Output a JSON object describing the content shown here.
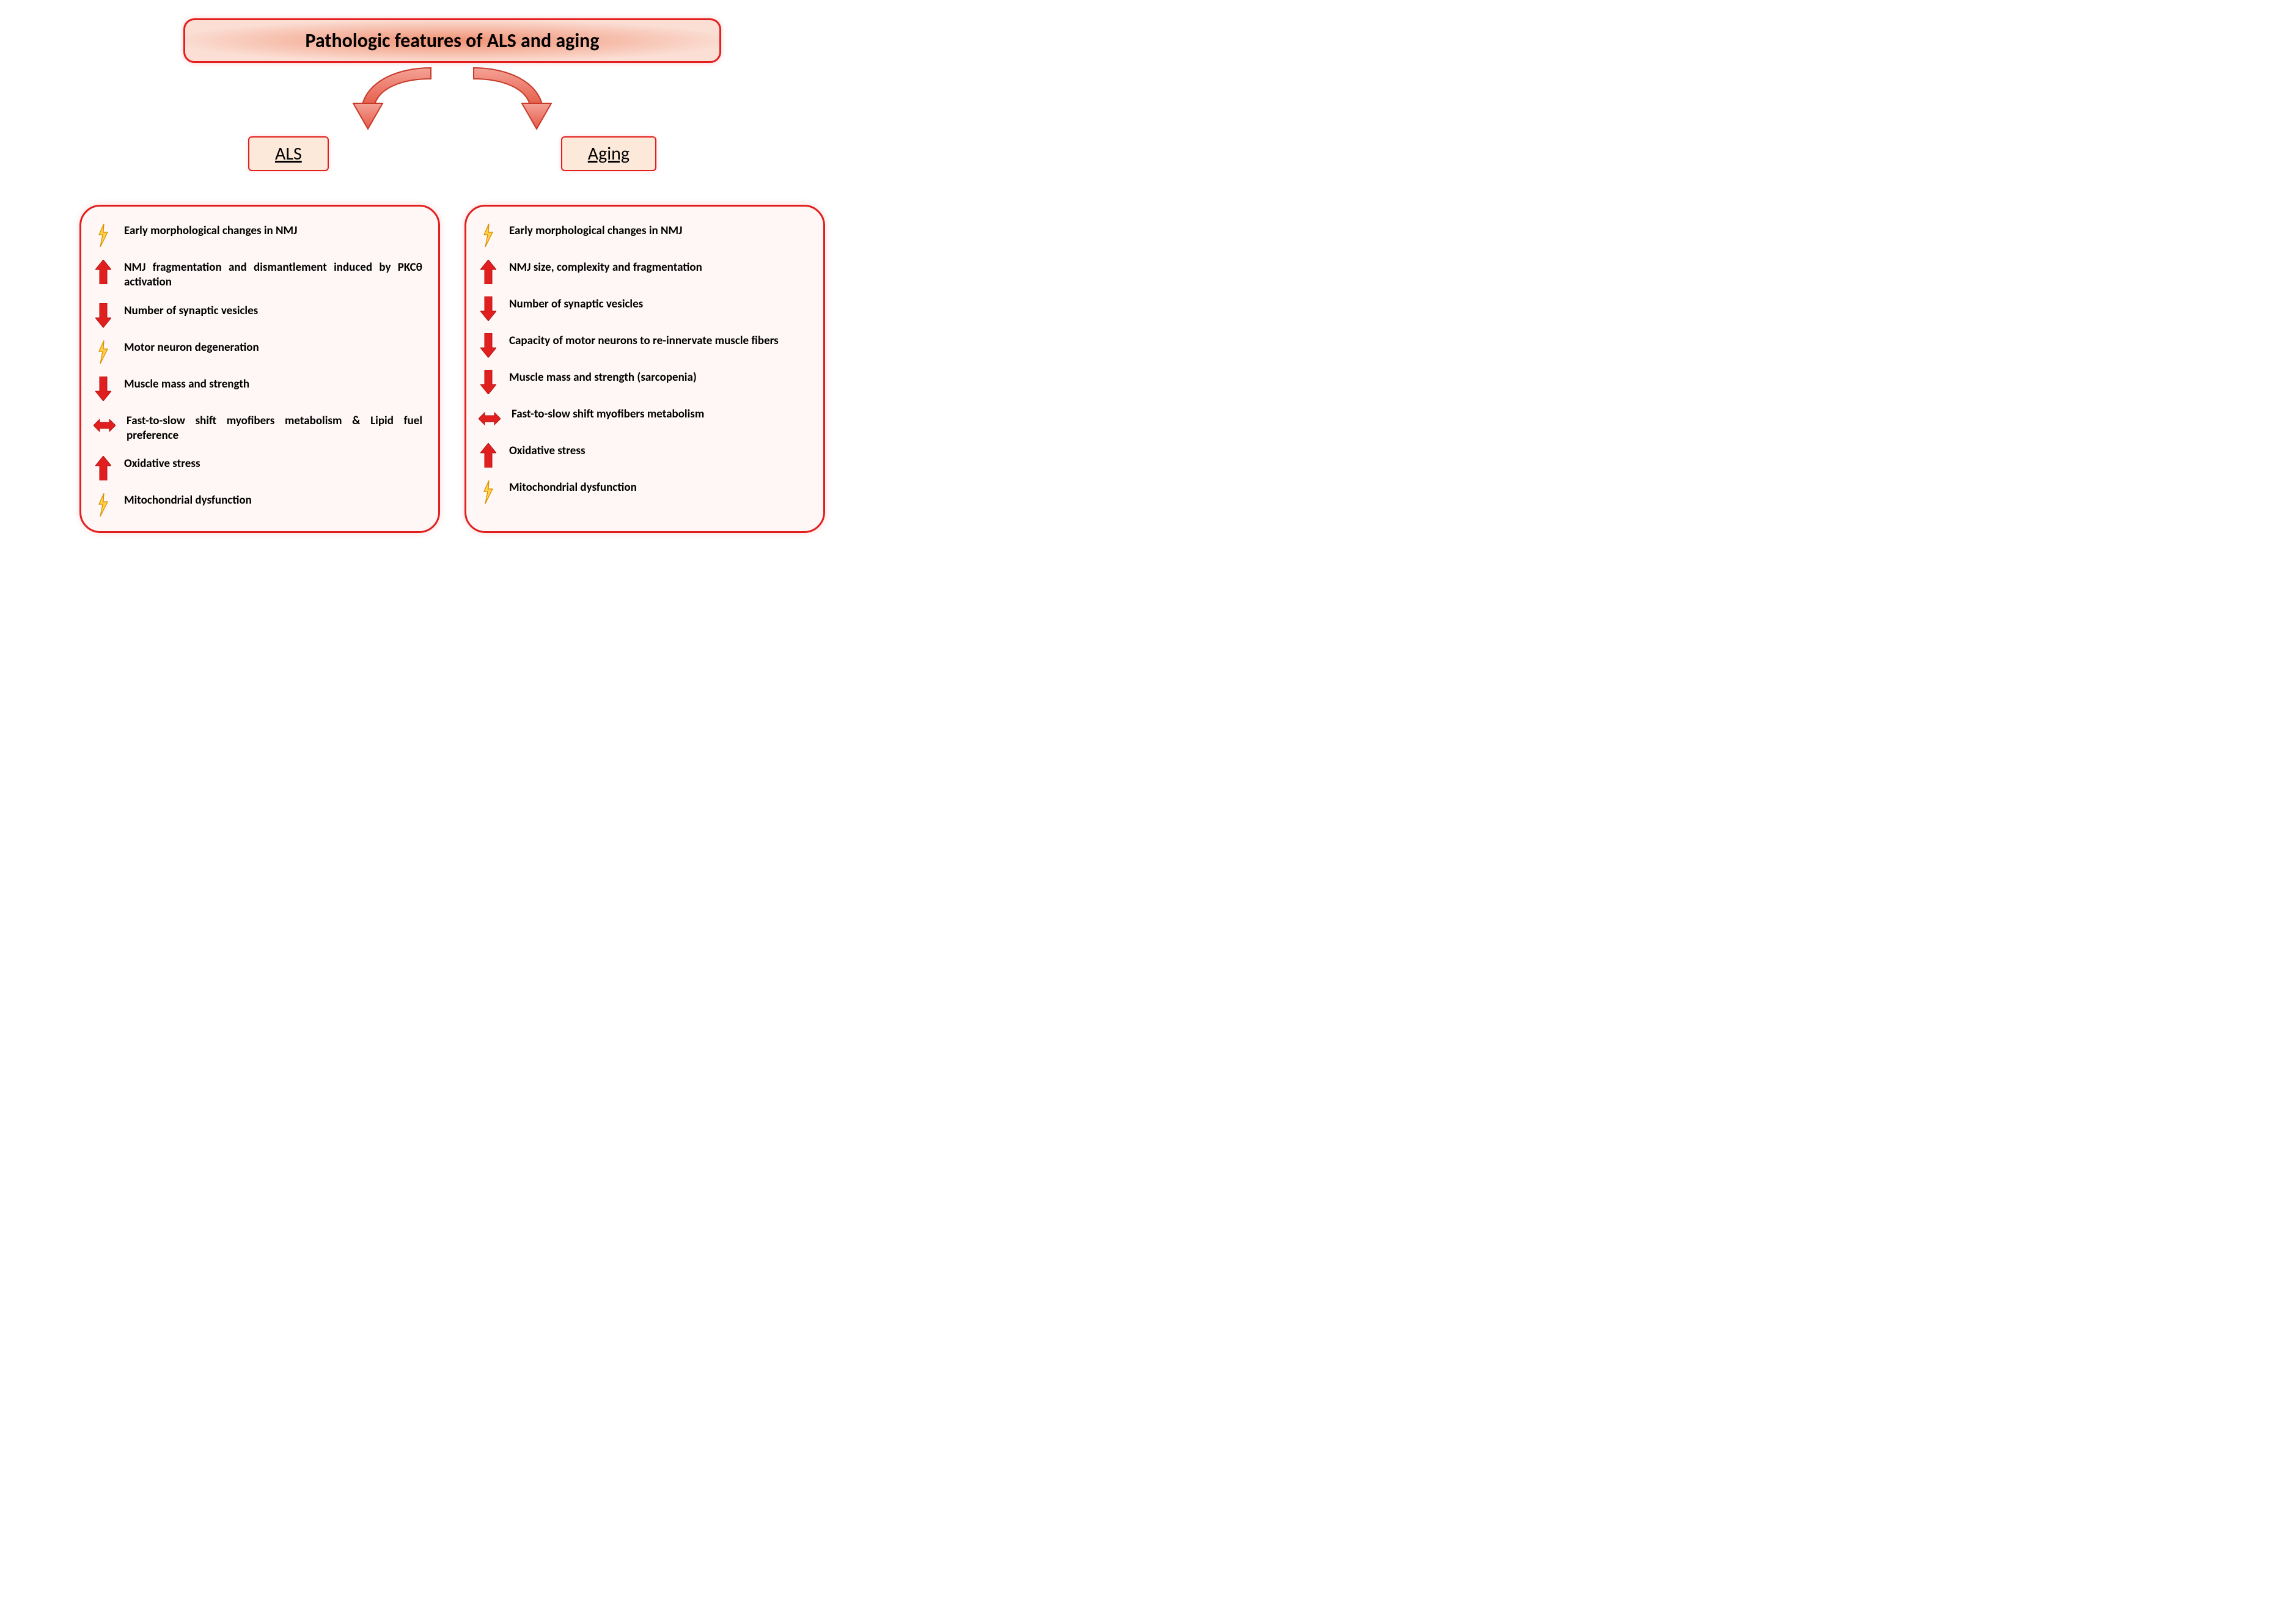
{
  "colors": {
    "border_red": "#e21f1f",
    "title_bg_outer": "#fbdfd5",
    "title_bg_center": "#f09072",
    "sub_bg": "#fde9d9",
    "panel_bg": "#fef7f5",
    "arrow_red": "#e21f1f",
    "arrow_red_dark": "#b01515",
    "bolt_fill": "#ffd24a",
    "bolt_stroke": "#d88c00",
    "curve_fill": "#ec6a5a",
    "curve_stroke": "#c73a2a",
    "text": "#000000"
  },
  "fonts": {
    "title_size": 32,
    "sub_size": 30,
    "item_size": 19
  },
  "title": "Pathologic features of ALS and aging",
  "left": {
    "heading": "ALS",
    "items": [
      {
        "icon": "bolt",
        "text": "Early morphological changes in NMJ"
      },
      {
        "icon": "up",
        "text": "NMJ fragmentation and dismantlement induced by PKCθ activation",
        "justify": true
      },
      {
        "icon": "down",
        "text": "Number of synaptic vesicles"
      },
      {
        "icon": "bolt",
        "text": "Motor neuron degeneration"
      },
      {
        "icon": "down",
        "text": "Muscle mass and strength"
      },
      {
        "icon": "lr",
        "text": "Fast-to-slow shift myofibers metabolism & Lipid fuel preference",
        "justify": true
      },
      {
        "icon": "up",
        "text": "Oxidative stress"
      },
      {
        "icon": "bolt",
        "text": "Mitochondrial dysfunction"
      }
    ]
  },
  "right": {
    "heading": "Aging",
    "items": [
      {
        "icon": "bolt",
        "text": "Early morphological changes in NMJ"
      },
      {
        "icon": "up",
        "text": "NMJ size, complexity and fragmentation"
      },
      {
        "icon": "down",
        "text": "Number of synaptic vesicles"
      },
      {
        "icon": "down",
        "text": "Capacity of motor neurons to re-innervate muscle fibers",
        "justify": true
      },
      {
        "icon": "down",
        "text": "Muscle mass and strength (sarcopenia)"
      },
      {
        "icon": "lr",
        "text": "Fast-to-slow shift myofibers metabolism"
      },
      {
        "icon": "up",
        "text": "Oxidative stress"
      },
      {
        "icon": "bolt",
        "text": "Mitochondrial dysfunction"
      }
    ]
  }
}
